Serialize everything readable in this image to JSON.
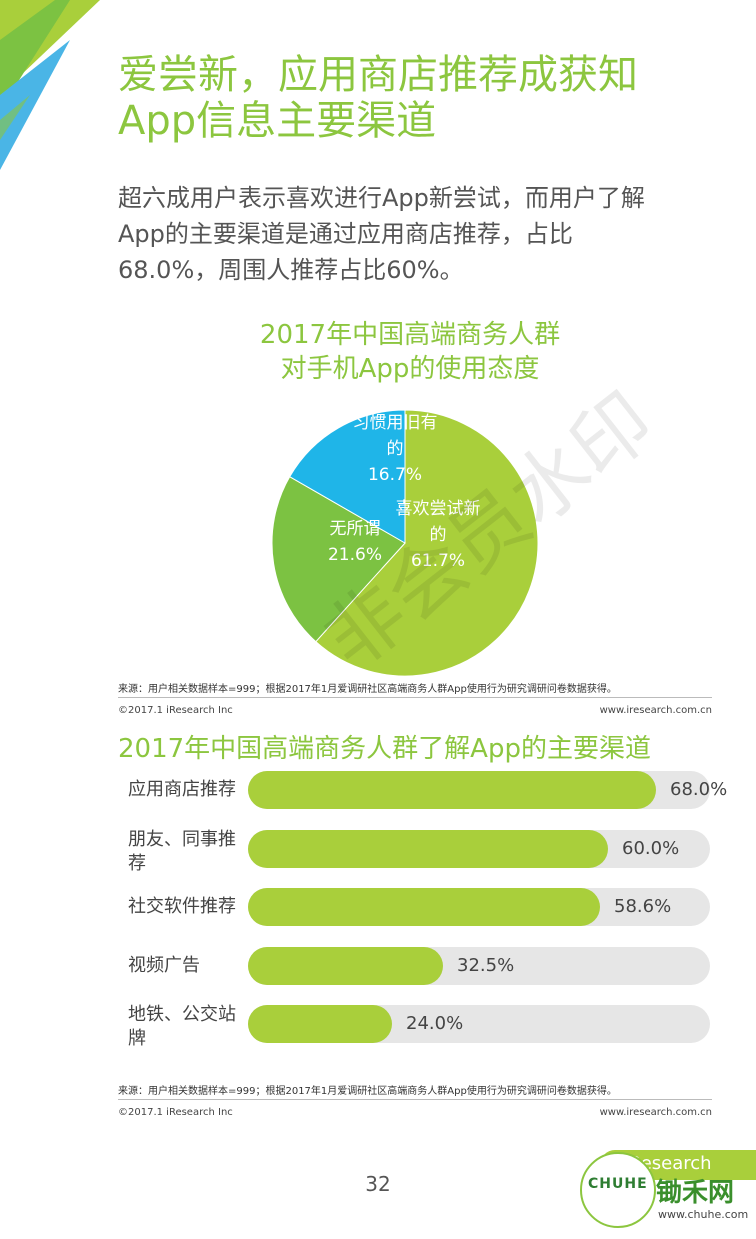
{
  "page": {
    "title_lines": [
      "爱尝新，应用商店推荐成获知",
      "App信息主要渠道"
    ],
    "subtitle_lines": [
      "超六成用户表示喜欢进行App新尝试，而用户了解",
      "App的主要渠道是通过应用商店推荐，占比",
      "68.0%，周围人推荐占比60%。"
    ],
    "watermark": "非会员水印",
    "page_number": "32"
  },
  "chart1": {
    "title_lines": [
      "2017年中国高端商务人群",
      "对手机App的使用态度"
    ],
    "source": "来源：用户相关数据样本=999；根据2017年1月爱调研社区高端商务人群App使用行为研究调研问卷数据获得。",
    "copyright": "©2017.1 iResearch Inc",
    "site": "www.iresearch.com.cn"
  },
  "chart2": {
    "title": "2017年中国高端商务人群了解App的主要渠道",
    "source": "来源：用户相关数据样本=999；根据2017年1月爱调研社区高端商务人群App使用行为研究调研问卷数据获得。",
    "copyright": "©2017.1 iResearch Inc",
    "site": "www.iresearch.com.cn"
  },
  "chart_data": [
    {
      "type": "pie",
      "title": "2017年中国高端商务人群对手机App的使用态度",
      "slices": [
        {
          "label_lines": [
            "喜欢尝试新",
            "的"
          ],
          "value": 61.7,
          "value_text": "61.7%",
          "color": "#a9cf3b"
        },
        {
          "label_lines": [
            "无所谓"
          ],
          "value": 21.6,
          "value_text": "21.6%",
          "color": "#7cc242"
        },
        {
          "label_lines": [
            "习惯用旧有",
            "的"
          ],
          "value": 16.7,
          "value_text": "16.7%",
          "color": "#1fb5e8"
        }
      ]
    },
    {
      "type": "bar",
      "title": "2017年中国高端商务人群了解App的主要渠道",
      "categories": [
        "应用商店推荐",
        "朋友、同事推荐",
        "社交软件推荐",
        "视频广告",
        "地铁、公交站牌"
      ],
      "category_lines": [
        [
          "应用商店推荐"
        ],
        [
          "朋友、同事推",
          "荐"
        ],
        [
          "社交软件推荐"
        ],
        [
          "视频广告"
        ],
        [
          "地铁、公交站",
          "牌"
        ]
      ],
      "values": [
        68.0,
        60.0,
        58.6,
        32.5,
        24.0
      ],
      "value_texts": [
        "68.0%",
        "60.0%",
        "58.6%",
        "32.5%",
        "24.0%"
      ],
      "xlim": [
        0,
        100
      ],
      "bar_color": "#a9cf3b",
      "track_color": "#e6e6e6"
    }
  ],
  "logos": {
    "iresearch": "iResearch",
    "chuhe_cn": "锄禾网",
    "chuhe_url": "www.chuhe.com",
    "chuhe_badge": "CHUHE"
  },
  "colors": {
    "accent": "#8cc63f",
    "blue": "#1fb5e8",
    "green_dark": "#7cc242"
  }
}
